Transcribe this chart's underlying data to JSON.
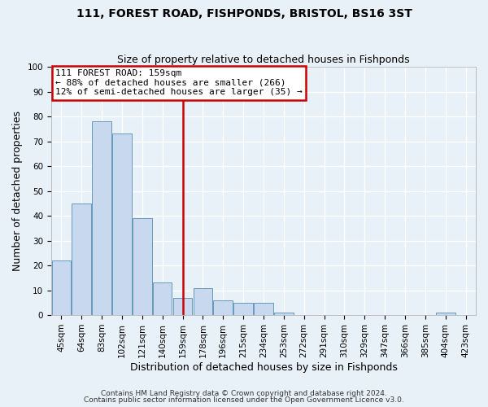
{
  "title": "111, FOREST ROAD, FISHPONDS, BRISTOL, BS16 3ST",
  "subtitle": "Size of property relative to detached houses in Fishponds",
  "xlabel": "Distribution of detached houses by size in Fishponds",
  "ylabel": "Number of detached properties",
  "bin_labels": [
    "45sqm",
    "64sqm",
    "83sqm",
    "102sqm",
    "121sqm",
    "140sqm",
    "159sqm",
    "178sqm",
    "196sqm",
    "215sqm",
    "234sqm",
    "253sqm",
    "272sqm",
    "291sqm",
    "310sqm",
    "329sqm",
    "347sqm",
    "366sqm",
    "385sqm",
    "404sqm",
    "423sqm"
  ],
  "bar_values": [
    22,
    45,
    78,
    73,
    39,
    13,
    7,
    11,
    6,
    5,
    5,
    1,
    0,
    0,
    0,
    0,
    0,
    0,
    0,
    1,
    0
  ],
  "bar_color": "#c8d8ee",
  "bar_edge_color": "#6699bb",
  "vline_x_index": 6,
  "vline_color": "#cc0000",
  "ylim": [
    0,
    100
  ],
  "annotation_line1": "111 FOREST ROAD: 159sqm",
  "annotation_line2": "← 88% of detached houses are smaller (266)",
  "annotation_line3": "12% of semi-detached houses are larger (35) →",
  "annotation_box_color": "#cc0000",
  "annotation_box_fill": "#ffffff",
  "footer_line1": "Contains HM Land Registry data © Crown copyright and database right 2024.",
  "footer_line2": "Contains public sector information licensed under the Open Government Licence v3.0.",
  "background_color": "#e8f0f8",
  "grid_color": "#ffffff",
  "title_fontsize": 10,
  "subtitle_fontsize": 9,
  "axis_label_fontsize": 9,
  "tick_fontsize": 7.5,
  "footer_fontsize": 6.5
}
